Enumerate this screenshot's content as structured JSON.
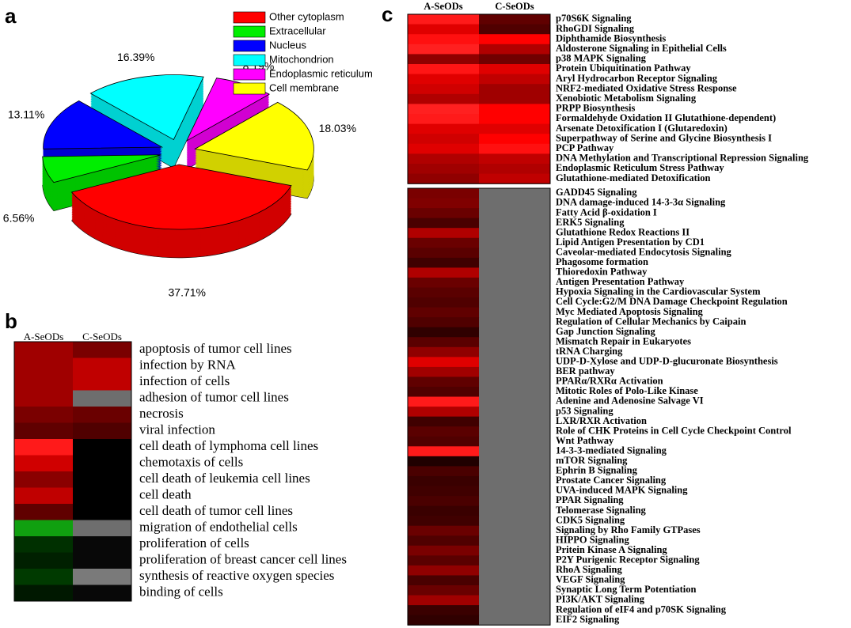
{
  "chart_data": [
    {
      "type": "pie",
      "panel": "a",
      "categories": [
        "Other cytoplasm",
        "Extracellular",
        "Nucleus",
        "Mitochondrion",
        "Endoplasmic reticulum",
        "Cell membrane"
      ],
      "values": [
        37.71,
        6.56,
        13.11,
        16.39,
        8.19,
        18.03
      ],
      "value_labels": [
        "37.71%",
        "6.56%",
        "13.11%",
        "16.39%",
        "8.19%",
        "18.03%"
      ],
      "colors": [
        "#ff0000",
        "#00ee00",
        "#0000ff",
        "#00ffff",
        "#ff00ff",
        "#ffff00"
      ]
    },
    {
      "type": "heatmap",
      "panel": "b",
      "columns": [
        "A-SeODs",
        "C-SeODs"
      ],
      "groups": [
        {
          "rows": [
            "apoptosis of tumor cell lines",
            "infection by RNA",
            "infection of cells",
            "adhesion of tumor cell lines",
            "necrosis",
            "viral infection",
            "cell death of lymphoma cell lines",
            "chemotaxis of  cells",
            "cell death of leukemia cell lines",
            "cell death",
            "cell death of tumor cell lines",
            "migration of endothelial cells",
            "proliferation of cells",
            "proliferation of breast cancer cell lines",
            "synthesis of reactive oxygen species",
            "binding of cells"
          ],
          "colors": [
            [
              "#a00000",
              "#7a0000"
            ],
            [
              "#a00000",
              "#c00000"
            ],
            [
              "#a00000",
              "#c00000"
            ],
            [
              "#a00000",
              "#6e6e6e"
            ],
            [
              "#7a0000",
              "#6a0000"
            ],
            [
              "#600000",
              "#500000"
            ],
            [
              "#ff1a1a",
              "#000000"
            ],
            [
              "#d00000",
              "#000000"
            ],
            [
              "#8a0000",
              "#000000"
            ],
            [
              "#c00000",
              "#000000"
            ],
            [
              "#600000",
              "#000000"
            ],
            [
              "#10a010",
              "#6e6e6e"
            ],
            [
              "#003000",
              "#080808"
            ],
            [
              "#002000",
              "#080808"
            ],
            [
              "#003a00",
              "#7a7a7a"
            ],
            [
              "#001800",
              "#080808"
            ]
          ]
        }
      ]
    },
    {
      "type": "heatmap",
      "panel": "c",
      "columns": [
        "A-SeODs",
        "C-SeODs"
      ],
      "groups": [
        {
          "rows": [
            "p70S6K Signaling",
            "RhoGDI Signaling",
            "Diphthamide Biosynthesis",
            "Aldosterone Signaling in Epithelial Cells",
            "p38 MAPK Signaling",
            "Protein Ubiquitination Pathway",
            "Aryl Hydrocarbon Receptor Signaling",
            "NRF2-mediated Oxidative Stress Response",
            "Xenobiotic Metabolism Signaling",
            "PRPP Biosynthesis",
            "Formaldehyde Oxidation II Glutathione-dependent)",
            "Arsenate Detoxification I (Glutaredoxin)",
            "Superpathway of Serine and Glycine Biosynthesis I",
            "PCP Pathway",
            "DNA Methylation and Transcriptional Repression Signaling",
            "Endoplasmic Reticulum Stress Pathway",
            "Glutathione-mediated Detoxification"
          ],
          "colors": [
            [
              "#ff1a1a",
              "#600000"
            ],
            [
              "#e00000",
              "#500000"
            ],
            [
              "#ff1010",
              "#ff0000"
            ],
            [
              "#ff2020",
              "#b00000"
            ],
            [
              "#900000",
              "#700000"
            ],
            [
              "#ff1515",
              "#e00000"
            ],
            [
              "#e00000",
              "#c00000"
            ],
            [
              "#d00000",
              "#a00000"
            ],
            [
              "#b00000",
              "#a00000"
            ],
            [
              "#ff2020",
              "#ff0000"
            ],
            [
              "#ff1a1a",
              "#ff0000"
            ],
            [
              "#e00000",
              "#e00000"
            ],
            [
              "#d00000",
              "#ff0000"
            ],
            [
              "#e00000",
              "#ff1010"
            ],
            [
              "#b00000",
              "#c00000"
            ],
            [
              "#a00000",
              "#b00000"
            ],
            [
              "#900000",
              "#c00000"
            ]
          ]
        },
        {
          "rows": [
            "GADD45 Signaling",
            "DNA damage-induced 14-3-3α Signaling",
            "Fatty Acid β-oxidation I",
            "ERK5 Signaling",
            "Glutathione Redox Reactions II",
            "Lipid Antigen Presentation by CD1",
            "Caveolar-mediated Endocytosis Signaling",
            "Phagosome formation",
            "Thioredoxin Pathway",
            "Antigen Presentation Pathway",
            "Hypoxia Signaling in the Cardiovascular System",
            "Cell Cycle:G2/M DNA Damage Checkpoint Regulation",
            "Myc Mediated Apoptosis Signaling",
            "Regulation of Cellular Mechanics by Caipain",
            "Gap Junction Signaling",
            "Mismatch Repair in Eukaryotes",
            "tRNA Charging",
            "UDP-D-Xylose and UDP-D-glucuronate Biosynthesis",
            "BER pathway",
            "PPARα/RXRα Activation",
            "Mitotic Roles of Polo-Like Kinase",
            "Adenine and Adenosine Salvage VI",
            "p53 Signaling",
            "LXR/RXR Activation",
            "Role of CHK Proteins in Cell Cycle Checkpoint Control",
            "Wnt Pathway",
            "14-3-3-mediated Signaling",
            "mTOR Signaling",
            "Ephrin B Signaling",
            "Prostate Cancer Signaling",
            "UVA-induced MAPK Signaling",
            "PPAR Signaling",
            "Telomerase Signaling",
            "CDK5 Signaling",
            "Signaling by Rho Family GTPases",
            "HIPPO Signaling",
            "Pritein Kinase A Signaling",
            "P2Y Purigenic Receptor Signaling",
            "RhoA Signaling",
            "VEGF Signaling",
            "Synaptic Long Term Potentiation",
            "PI3K/AKT Signaling",
            "Regulation of eIF4 and p70SK Signaling",
            "EIF2 Signaling"
          ],
          "colors": [
            [
              "#7a0000",
              "#6e6e6e"
            ],
            [
              "#800000",
              "#6e6e6e"
            ],
            [
              "#6a0000",
              "#6e6e6e"
            ],
            [
              "#4a0000",
              "#6e6e6e"
            ],
            [
              "#b00000",
              "#6e6e6e"
            ],
            [
              "#6a0000",
              "#6e6e6e"
            ],
            [
              "#5a0000",
              "#6e6e6e"
            ],
            [
              "#400000",
              "#6e6e6e"
            ],
            [
              "#b00000",
              "#6e6e6e"
            ],
            [
              "#6a0000",
              "#6e6e6e"
            ],
            [
              "#5a0000",
              "#6e6e6e"
            ],
            [
              "#500000",
              "#6e6e6e"
            ],
            [
              "#600000",
              "#6e6e6e"
            ],
            [
              "#500000",
              "#6e6e6e"
            ],
            [
              "#300000",
              "#6e6e6e"
            ],
            [
              "#5a0000",
              "#6e6e6e"
            ],
            [
              "#900000",
              "#6e6e6e"
            ],
            [
              "#e00000",
              "#6e6e6e"
            ],
            [
              "#a00000",
              "#6e6e6e"
            ],
            [
              "#600000",
              "#6e6e6e"
            ],
            [
              "#500000",
              "#6e6e6e"
            ],
            [
              "#ff1a1a",
              "#6e6e6e"
            ],
            [
              "#b00000",
              "#6e6e6e"
            ],
            [
              "#400000",
              "#6e6e6e"
            ],
            [
              "#5a0000",
              "#6e6e6e"
            ],
            [
              "#500000",
              "#6e6e6e"
            ],
            [
              "#ff1a1a",
              "#6e6e6e"
            ],
            [
              "#200000",
              "#6e6e6e"
            ],
            [
              "#4a0000",
              "#6e6e6e"
            ],
            [
              "#3a0000",
              "#6e6e6e"
            ],
            [
              "#400000",
              "#6e6e6e"
            ],
            [
              "#4a0000",
              "#6e6e6e"
            ],
            [
              "#3a0000",
              "#6e6e6e"
            ],
            [
              "#400000",
              "#6e6e6e"
            ],
            [
              "#6a0000",
              "#6e6e6e"
            ],
            [
              "#500000",
              "#6e6e6e"
            ],
            [
              "#7a0000",
              "#6e6e6e"
            ],
            [
              "#5a0000",
              "#6e6e6e"
            ],
            [
              "#900000",
              "#6e6e6e"
            ],
            [
              "#4a0000",
              "#6e6e6e"
            ],
            [
              "#6a0000",
              "#6e6e6e"
            ],
            [
              "#a00000",
              "#6e6e6e"
            ],
            [
              "#3a0000",
              "#6e6e6e"
            ],
            [
              "#300000",
              "#6e6e6e"
            ]
          ]
        }
      ]
    }
  ]
}
